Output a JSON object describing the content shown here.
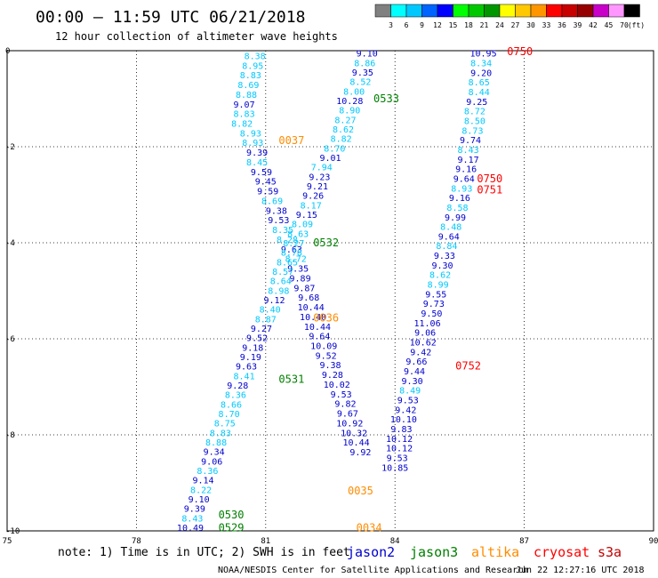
{
  "header": {
    "title": "00:00 – 11:59 UTC 06/21/2018",
    "subtitle": "12 hour collection of altimeter wave heights"
  },
  "scale": {
    "labels": [
      "3",
      "6",
      "9",
      "12",
      "15",
      "18",
      "21",
      "24",
      "27",
      "30",
      "33",
      "36",
      "39",
      "42",
      "45",
      "70",
      "(ft)"
    ],
    "colors": [
      "#808080",
      "#00ffff",
      "#00c8ff",
      "#0064ff",
      "#0000ff",
      "#00ff00",
      "#00c800",
      "#009600",
      "#ffff00",
      "#ffc800",
      "#ff9600",
      "#ff0000",
      "#c80000",
      "#960000",
      "#c800c8",
      "#ff96ff",
      "#000000"
    ]
  },
  "footer": {
    "note": "note:  1) Time is in UTC;  2) SWH is in feet",
    "credit": "NOAA/NESDIS Center for Satellite Applications and Research",
    "timestamp": "Jun 22 12:27:16 UTC 2018"
  },
  "legend": [
    {
      "name": "jason2",
      "color": "#0000cd"
    },
    {
      "name": "jason3",
      "color": "#008000"
    },
    {
      "name": "altika",
      "color": "#ff8c00"
    },
    {
      "name": "cryosat",
      "color": "#ff0000"
    },
    {
      "name": "s3a",
      "color": "#c00000"
    }
  ],
  "chart_data": {
    "type": "scatter",
    "x_ticks": [
      "75",
      "78",
      "81",
      "84",
      "87",
      "90"
    ],
    "y_ticks": [
      "0",
      "-2",
      "-4",
      "-6",
      "-8",
      "-10"
    ],
    "xlim": [
      75,
      90
    ],
    "ylim": [
      -10,
      0
    ],
    "grid": true,
    "passes": [
      {
        "label": "0037",
        "color": "#ff8c00",
        "x": 81.6,
        "y": -1.85
      },
      {
        "label": "0036",
        "color": "#ff8c00",
        "x": 82.4,
        "y": -5.55
      },
      {
        "label": "0035",
        "color": "#ff8c00",
        "x": 83.2,
        "y": -9.15
      },
      {
        "label": "0034",
        "color": "#ff8c00",
        "x": 83.4,
        "y": -9.92
      },
      {
        "label": "0533",
        "color": "#008000",
        "x": 83.8,
        "y": -0.98
      },
      {
        "label": "0532",
        "color": "#008000",
        "x": 82.4,
        "y": -3.98
      },
      {
        "label": "0531",
        "color": "#008000",
        "x": 81.6,
        "y": -6.82
      },
      {
        "label": "0530",
        "color": "#008000",
        "x": 80.2,
        "y": -9.65
      },
      {
        "label": "0529",
        "color": "#008000",
        "x": 80.2,
        "y": -9.92
      },
      {
        "label": "0750",
        "color": "#ff0000",
        "x": 86.9,
        "y": 0.0
      },
      {
        "label": "0750",
        "color": "#ff0000",
        "x": 86.2,
        "y": -2.65
      },
      {
        "label": "0751",
        "color": "#ff0000",
        "x": 86.2,
        "y": -2.88
      },
      {
        "label": "0752",
        "color": "#ff0000",
        "x": 85.7,
        "y": -6.55
      }
    ],
    "tracks": [
      {
        "name": "jason3 track A",
        "y_start": -0.1,
        "y_step": -0.2013,
        "points": [
          {
            "x": 80.75,
            "v": "8.38",
            "c": "#00c8ff"
          },
          {
            "x": 80.7,
            "v": "8.95",
            "c": "#00c8ff"
          },
          {
            "x": 80.65,
            "v": "8.83",
            "c": "#00c8ff"
          },
          {
            "x": 80.6,
            "v": "8.69",
            "c": "#00c8ff"
          },
          {
            "x": 80.55,
            "v": "8.88",
            "c": "#00c8ff"
          },
          {
            "x": 80.5,
            "v": "9.07",
            "c": "#0000cd"
          },
          {
            "x": 80.5,
            "v": "8.83",
            "c": "#00c8ff"
          },
          {
            "x": 80.45,
            "v": "8.82",
            "c": "#00c8ff"
          },
          {
            "x": 80.65,
            "v": "8.93",
            "c": "#00c8ff"
          },
          {
            "x": 80.7,
            "v": "8.93",
            "c": "#00c8ff"
          },
          {
            "x": 80.8,
            "v": "9.39",
            "c": "#0000cd"
          },
          {
            "x": 80.8,
            "v": "8.45",
            "c": "#00c8ff"
          },
          {
            "x": 80.9,
            "v": "9.59",
            "c": "#0000cd"
          },
          {
            "x": 81.0,
            "v": "9.45",
            "c": "#0000cd"
          },
          {
            "x": 81.05,
            "v": "9.59",
            "c": "#0000cd"
          },
          {
            "x": 81.15,
            "v": "8.69",
            "c": "#00c8ff"
          },
          {
            "x": 81.25,
            "v": "9.38",
            "c": "#0000cd"
          },
          {
            "x": 81.3,
            "v": "9.53",
            "c": "#0000cd"
          },
          {
            "x": 81.4,
            "v": "8.35",
            "c": "#00c8ff"
          },
          {
            "x": 81.5,
            "v": "8.28",
            "c": "#00c8ff"
          },
          {
            "x": 81.6,
            "v": "9.63",
            "c": "#0000cd"
          },
          {
            "x": 81.7,
            "v": "8.72",
            "c": "#00c8ff"
          },
          {
            "x": 81.75,
            "v": "9.35",
            "c": "#0000cd"
          },
          {
            "x": 81.8,
            "v": "9.89",
            "c": "#0000cd"
          },
          {
            "x": 81.9,
            "v": "9.87",
            "c": "#0000cd"
          },
          {
            "x": 82.0,
            "v": "9.68",
            "c": "#0000cd"
          },
          {
            "x": 82.05,
            "v": "10.44",
            "c": "#0000cd"
          },
          {
            "x": 82.1,
            "v": "10.40",
            "c": "#0000cd"
          },
          {
            "x": 82.2,
            "v": "10.44",
            "c": "#0000cd"
          },
          {
            "x": 82.25,
            "v": "9.64",
            "c": "#0000cd"
          },
          {
            "x": 82.35,
            "v": "10.09",
            "c": "#0000cd"
          },
          {
            "x": 82.4,
            "v": "9.52",
            "c": "#0000cd"
          },
          {
            "x": 82.5,
            "v": "9.38",
            "c": "#0000cd"
          },
          {
            "x": 82.55,
            "v": "9.28",
            "c": "#0000cd"
          },
          {
            "x": 82.65,
            "v": "10.02",
            "c": "#0000cd"
          },
          {
            "x": 82.75,
            "v": "9.53",
            "c": "#0000cd"
          },
          {
            "x": 82.85,
            "v": "9.82",
            "c": "#0000cd"
          },
          {
            "x": 82.9,
            "v": "9.67",
            "c": "#0000cd"
          },
          {
            "x": 82.95,
            "v": "10.92",
            "c": "#0000cd"
          },
          {
            "x": 83.05,
            "v": "10.32",
            "c": "#0000cd"
          },
          {
            "x": 83.1,
            "v": "10.44",
            "c": "#0000cd"
          },
          {
            "x": 83.2,
            "v": "9.92",
            "c": "#0000cd"
          }
        ]
      },
      {
        "name": "jason2 track",
        "y_start": -0.05,
        "y_step": -0.1975,
        "points": [
          {
            "x": 83.35,
            "v": "9.10",
            "c": "#0000cd"
          },
          {
            "x": 83.3,
            "v": "8.86",
            "c": "#00c8ff"
          },
          {
            "x": 83.25,
            "v": "9.35",
            "c": "#0000cd"
          },
          {
            "x": 83.2,
            "v": "8.52",
            "c": "#00c8ff"
          },
          {
            "x": 83.05,
            "v": "8.00",
            "c": "#00c8ff"
          },
          {
            "x": 82.95,
            "v": "10.28",
            "c": "#0000cd"
          },
          {
            "x": 82.95,
            "v": "8.90",
            "c": "#00c8ff"
          },
          {
            "x": 82.85,
            "v": "8.27",
            "c": "#00c8ff"
          },
          {
            "x": 82.8,
            "v": "8.62",
            "c": "#00c8ff"
          },
          {
            "x": 82.75,
            "v": "8.82",
            "c": "#00c8ff"
          },
          {
            "x": 82.6,
            "v": "8.70",
            "c": "#00c8ff"
          },
          {
            "x": 82.5,
            "v": "9.01",
            "c": "#0000cd"
          },
          {
            "x": 82.3,
            "v": "7.94",
            "c": "#00c8ff"
          },
          {
            "x": 82.25,
            "v": "9.23",
            "c": "#0000cd"
          },
          {
            "x": 82.2,
            "v": "9.21",
            "c": "#0000cd"
          },
          {
            "x": 82.1,
            "v": "9.26",
            "c": "#0000cd"
          },
          {
            "x": 82.05,
            "v": "8.17",
            "c": "#00c8ff"
          },
          {
            "x": 81.95,
            "v": "9.15",
            "c": "#0000cd"
          },
          {
            "x": 81.85,
            "v": "8.09",
            "c": "#00c8ff"
          },
          {
            "x": 81.75,
            "v": "8.63",
            "c": "#00c8ff"
          },
          {
            "x": 81.65,
            "v": "8.27",
            "c": "#00c8ff"
          },
          {
            "x": 81.6,
            "v": "8.78",
            "c": "#00c8ff"
          },
          {
            "x": 81.5,
            "v": "8.65",
            "c": "#00c8ff"
          },
          {
            "x": 81.4,
            "v": "8.57",
            "c": "#00c8ff"
          },
          {
            "x": 81.35,
            "v": "8.64",
            "c": "#00c8ff"
          },
          {
            "x": 81.3,
            "v": "8.98",
            "c": "#00c8ff"
          },
          {
            "x": 81.2,
            "v": "9.12",
            "c": "#0000cd"
          },
          {
            "x": 81.1,
            "v": "8.40",
            "c": "#00c8ff"
          },
          {
            "x": 81.0,
            "v": "8.87",
            "c": "#00c8ff"
          },
          {
            "x": 80.9,
            "v": "9.27",
            "c": "#0000cd"
          },
          {
            "x": 80.8,
            "v": "9.52",
            "c": "#0000cd"
          },
          {
            "x": 80.7,
            "v": "9.18",
            "c": "#0000cd"
          },
          {
            "x": 80.65,
            "v": "9.19",
            "c": "#0000cd"
          },
          {
            "x": 80.55,
            "v": "9.63",
            "c": "#0000cd"
          },
          {
            "x": 80.5,
            "v": "8.41",
            "c": "#00c8ff"
          },
          {
            "x": 80.35,
            "v": "9.28",
            "c": "#0000cd"
          },
          {
            "x": 80.3,
            "v": "8.36",
            "c": "#00c8ff"
          },
          {
            "x": 80.2,
            "v": "8.66",
            "c": "#00c8ff"
          },
          {
            "x": 80.15,
            "v": "8.70",
            "c": "#00c8ff"
          },
          {
            "x": 80.05,
            "v": "8.75",
            "c": "#00c8ff"
          },
          {
            "x": 79.95,
            "v": "8.83",
            "c": "#00c8ff"
          },
          {
            "x": 79.85,
            "v": "8.88",
            "c": "#00c8ff"
          },
          {
            "x": 79.8,
            "v": "9.34",
            "c": "#0000cd"
          },
          {
            "x": 79.75,
            "v": "9.06",
            "c": "#0000cd"
          },
          {
            "x": 79.65,
            "v": "8.36",
            "c": "#00c8ff"
          },
          {
            "x": 79.55,
            "v": "9.14",
            "c": "#0000cd"
          },
          {
            "x": 79.5,
            "v": "8.22",
            "c": "#00c8ff"
          },
          {
            "x": 79.45,
            "v": "9.10",
            "c": "#0000cd"
          },
          {
            "x": 79.35,
            "v": "9.39",
            "c": "#0000cd"
          },
          {
            "x": 79.3,
            "v": "8.43",
            "c": "#00c8ff"
          },
          {
            "x": 79.25,
            "v": "10.49",
            "c": "#0000cd"
          }
        ]
      },
      {
        "name": "cryosat track",
        "y_start": -0.05,
        "y_step": -0.2005,
        "points": [
          {
            "x": 86.05,
            "v": "10.95",
            "c": "#0000cd"
          },
          {
            "x": 86.0,
            "v": "8.34",
            "c": "#00c8ff"
          },
          {
            "x": 86.0,
            "v": "9.20",
            "c": "#0000cd"
          },
          {
            "x": 85.95,
            "v": "8.65",
            "c": "#00c8ff"
          },
          {
            "x": 85.95,
            "v": "8.44",
            "c": "#00c8ff"
          },
          {
            "x": 85.9,
            "v": "9.25",
            "c": "#0000cd"
          },
          {
            "x": 85.85,
            "v": "8.72",
            "c": "#00c8ff"
          },
          {
            "x": 85.85,
            "v": "8.50",
            "c": "#00c8ff"
          },
          {
            "x": 85.8,
            "v": "8.73",
            "c": "#00c8ff"
          },
          {
            "x": 85.75,
            "v": "9.74",
            "c": "#0000cd"
          },
          {
            "x": 85.7,
            "v": "8.43",
            "c": "#00c8ff"
          },
          {
            "x": 85.7,
            "v": "9.17",
            "c": "#0000cd"
          },
          {
            "x": 85.65,
            "v": "9.16",
            "c": "#0000cd"
          },
          {
            "x": 85.6,
            "v": "9.64",
            "c": "#0000cd"
          },
          {
            "x": 85.55,
            "v": "8.93",
            "c": "#00c8ff"
          },
          {
            "x": 85.5,
            "v": "9.16",
            "c": "#0000cd"
          },
          {
            "x": 85.45,
            "v": "8.58",
            "c": "#00c8ff"
          },
          {
            "x": 85.4,
            "v": "9.99",
            "c": "#0000cd"
          },
          {
            "x": 85.3,
            "v": "8.48",
            "c": "#00c8ff"
          },
          {
            "x": 85.25,
            "v": "9.64",
            "c": "#0000cd"
          },
          {
            "x": 85.2,
            "v": "8.84",
            "c": "#00c8ff"
          },
          {
            "x": 85.15,
            "v": "9.33",
            "c": "#0000cd"
          },
          {
            "x": 85.1,
            "v": "9.30",
            "c": "#0000cd"
          },
          {
            "x": 85.05,
            "v": "8.62",
            "c": "#00c8ff"
          },
          {
            "x": 85.0,
            "v": "8.99",
            "c": "#00c8ff"
          },
          {
            "x": 84.95,
            "v": "9.55",
            "c": "#0000cd"
          },
          {
            "x": 84.9,
            "v": "9.73",
            "c": "#0000cd"
          },
          {
            "x": 84.85,
            "v": "9.50",
            "c": "#0000cd"
          },
          {
            "x": 84.75,
            "v": "11.06",
            "c": "#0000cd"
          },
          {
            "x": 84.7,
            "v": "9.06",
            "c": "#0000cd"
          },
          {
            "x": 84.65,
            "v": "10.62",
            "c": "#0000cd"
          },
          {
            "x": 84.6,
            "v": "9.42",
            "c": "#0000cd"
          },
          {
            "x": 84.5,
            "v": "9.66",
            "c": "#0000cd"
          },
          {
            "x": 84.45,
            "v": "9.44",
            "c": "#0000cd"
          },
          {
            "x": 84.4,
            "v": "9.30",
            "c": "#0000cd"
          },
          {
            "x": 84.35,
            "v": "8.49",
            "c": "#00c8ff"
          },
          {
            "x": 84.3,
            "v": "9.53",
            "c": "#0000cd"
          },
          {
            "x": 84.25,
            "v": "9.42",
            "c": "#0000cd"
          },
          {
            "x": 84.2,
            "v": "10.10",
            "c": "#0000cd"
          },
          {
            "x": 84.15,
            "v": "9.83",
            "c": "#0000cd"
          },
          {
            "x": 84.1,
            "v": "10.12",
            "c": "#0000cd"
          },
          {
            "x": 84.1,
            "v": "10.12",
            "c": "#0000cd"
          },
          {
            "x": 84.05,
            "v": "9.53",
            "c": "#0000cd"
          },
          {
            "x": 84.0,
            "v": "10.85",
            "c": "#0000cd"
          }
        ]
      }
    ]
  }
}
